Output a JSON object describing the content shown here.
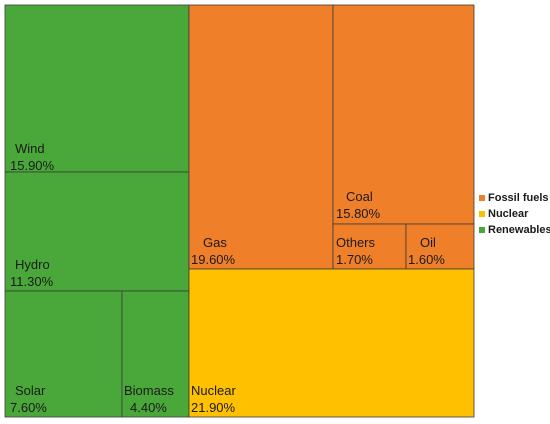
{
  "chart_data": {
    "type": "treemap",
    "title": "",
    "legend_position": "right",
    "groups": [
      {
        "name": "Renewables",
        "color": "#4aa83a"
      },
      {
        "name": "Fossil fuels",
        "color": "#f07f2a"
      },
      {
        "name": "Nuclear",
        "color": "#ffc000"
      }
    ],
    "tiles": [
      {
        "label": "Wind",
        "value_label": "15.90%",
        "value": 15.9,
        "group": "Renewables"
      },
      {
        "label": "Hydro",
        "value_label": "11.30%",
        "value": 11.3,
        "group": "Renewables"
      },
      {
        "label": "Solar",
        "value_label": "7.60%",
        "value": 7.6,
        "group": "Renewables"
      },
      {
        "label": "Biomass",
        "value_label": "4.40%",
        "value": 4.4,
        "group": "Renewables"
      },
      {
        "label": "Gas",
        "value_label": "19.60%",
        "value": 19.6,
        "group": "Fossil fuels"
      },
      {
        "label": "Coal",
        "value_label": "15.80%",
        "value": 15.8,
        "group": "Fossil fuels"
      },
      {
        "label": "Others",
        "value_label": "1.70%",
        "value": 1.7,
        "group": "Fossil fuels"
      },
      {
        "label": "Oil",
        "value_label": "1.60%",
        "value": 1.6,
        "group": "Fossil fuels"
      },
      {
        "label": "Nuclear",
        "value_label": "21.90%",
        "value": 21.9,
        "group": "Nuclear"
      }
    ],
    "legend": [
      {
        "name": "Fossil fuels",
        "color": "#f07f2a"
      },
      {
        "name": "Nuclear",
        "color": "#ffc000"
      },
      {
        "name": "Renewables",
        "color": "#4aa83a"
      }
    ]
  }
}
